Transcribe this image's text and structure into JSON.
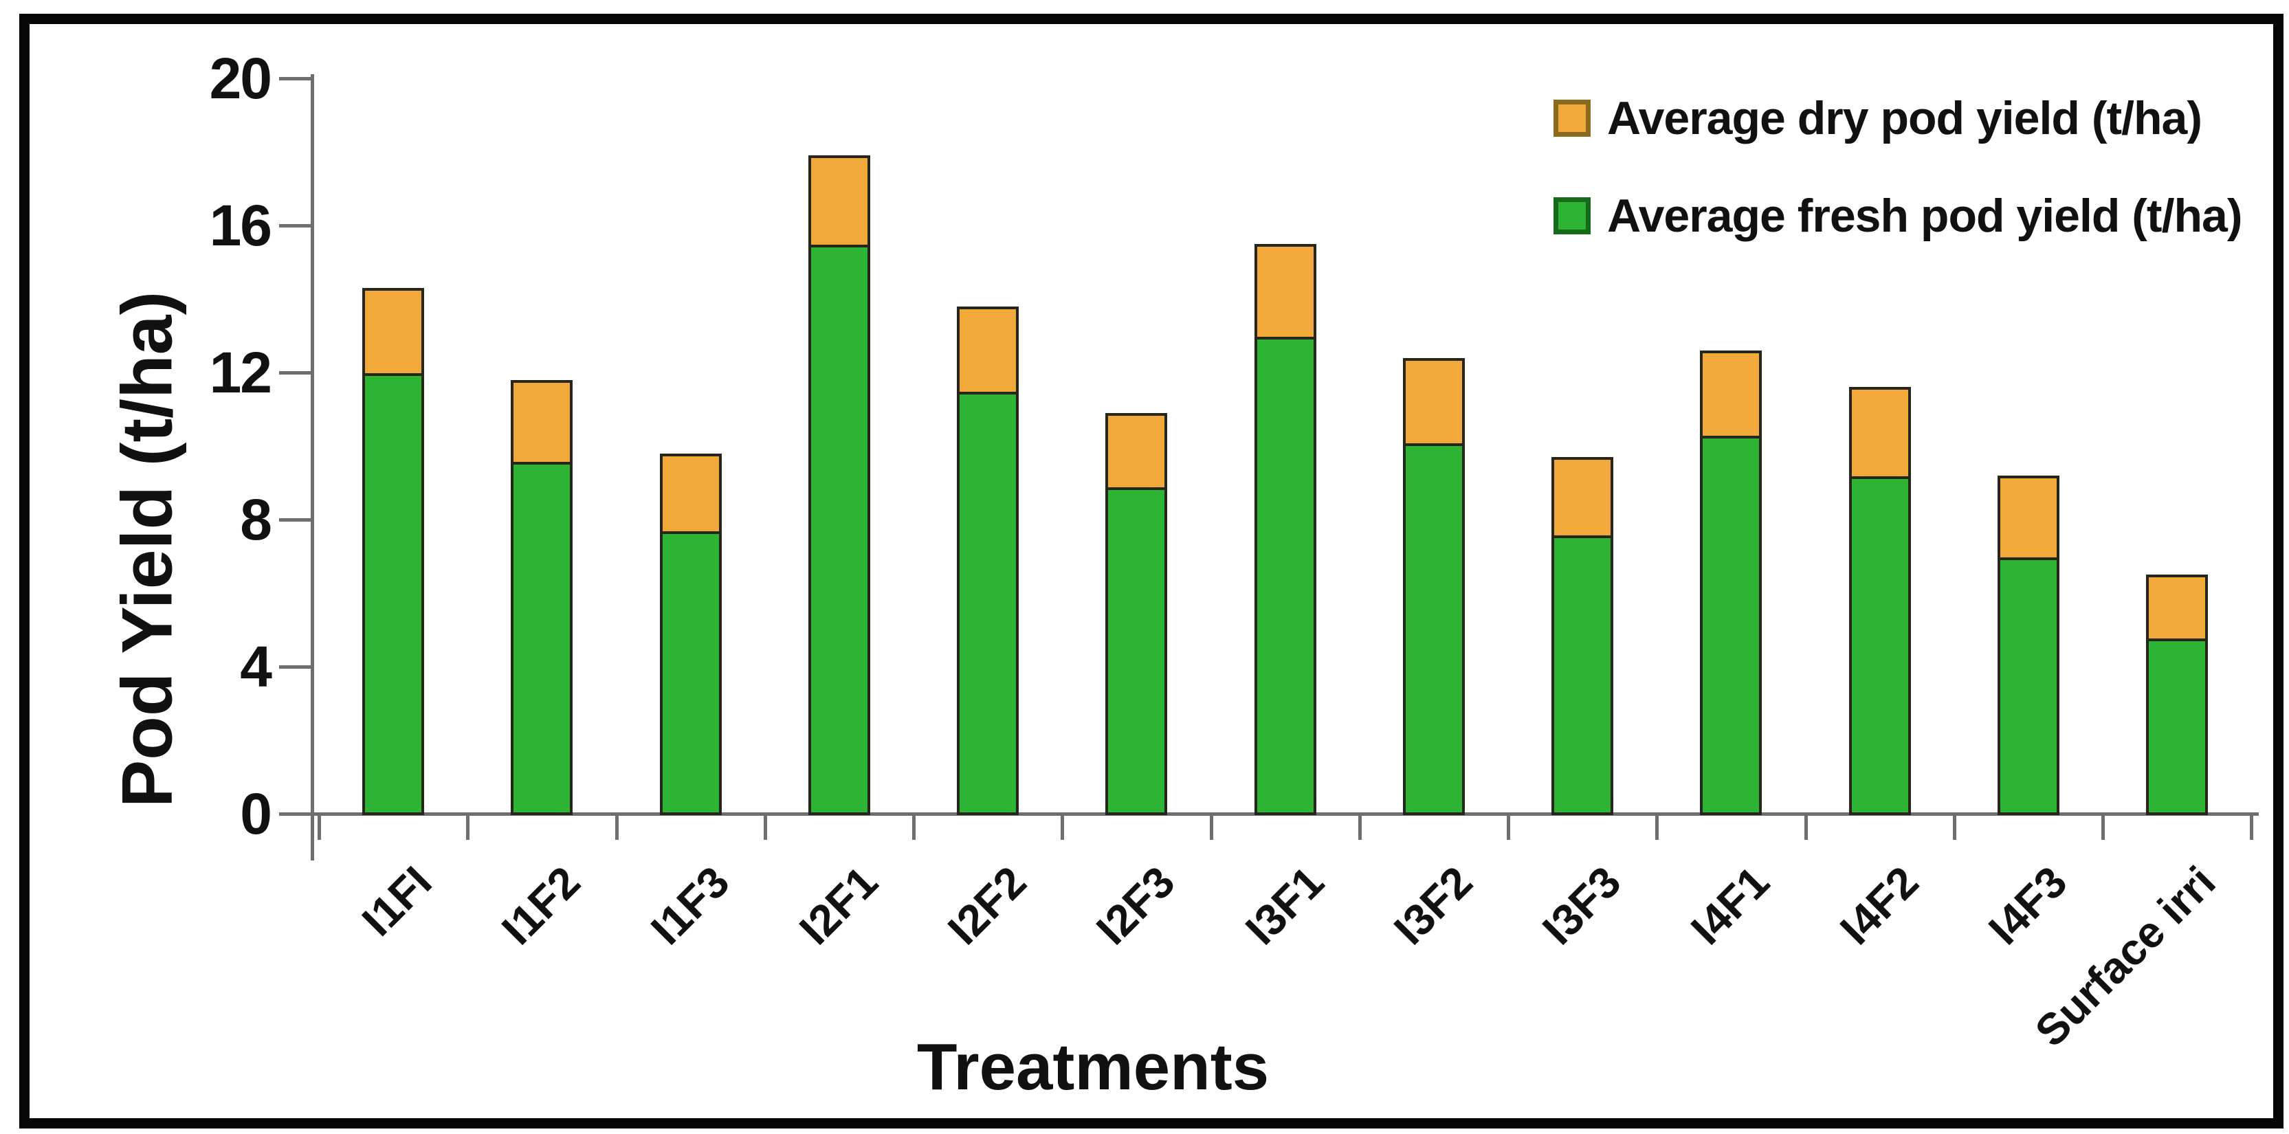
{
  "figure": {
    "background": "#ffffff",
    "frame_color": "#050505",
    "axis_color": "#6e6e6e",
    "bar_outline_color": "#26261a",
    "text_color": "#111111"
  },
  "legend": {
    "position": "top-right",
    "items": [
      {
        "label": "Average dry pod yield (t/ha)",
        "series": "dry",
        "color": "#f2a93b",
        "border": "#8a6a1f"
      },
      {
        "label": "Average fresh pod yield (t/ha)",
        "series": "fresh",
        "color": "#2eb434",
        "border": "#17691c"
      }
    ]
  },
  "chart_data": {
    "type": "bar",
    "stacked": true,
    "title": "",
    "xlabel": "Treatments",
    "ylabel": "Pod Yield (t/ha)",
    "ylim": [
      0,
      20
    ],
    "yticks": [
      0,
      4,
      8,
      12,
      16,
      20
    ],
    "grid": false,
    "legend_position": "top-right",
    "categories": [
      "I1FI",
      "I1F2",
      "I1F3",
      "I2F1",
      "I2F2",
      "I2F3",
      "I3F1",
      "I3F2",
      "I3F3",
      "I4F1",
      "I4F2",
      "I4F3",
      "Surface irri"
    ],
    "series": [
      {
        "name": "Average fresh pod yield (t/ha)",
        "color": "#2eb434",
        "values": [
          11.9,
          9.5,
          7.6,
          15.4,
          11.4,
          8.8,
          12.9,
          10.0,
          7.5,
          10.2,
          9.1,
          6.9,
          4.7
        ]
      },
      {
        "name": "Average dry pod yield (t/ha)",
        "color": "#f2a93b",
        "values": [
          2.4,
          2.3,
          2.2,
          2.5,
          2.4,
          2.1,
          2.6,
          2.4,
          2.2,
          2.4,
          2.5,
          2.3,
          1.8
        ]
      }
    ],
    "totals": [
      14.3,
      11.8,
      9.8,
      17.9,
      13.8,
      10.9,
      15.5,
      12.4,
      9.7,
      12.6,
      11.6,
      9.2,
      6.5
    ]
  }
}
